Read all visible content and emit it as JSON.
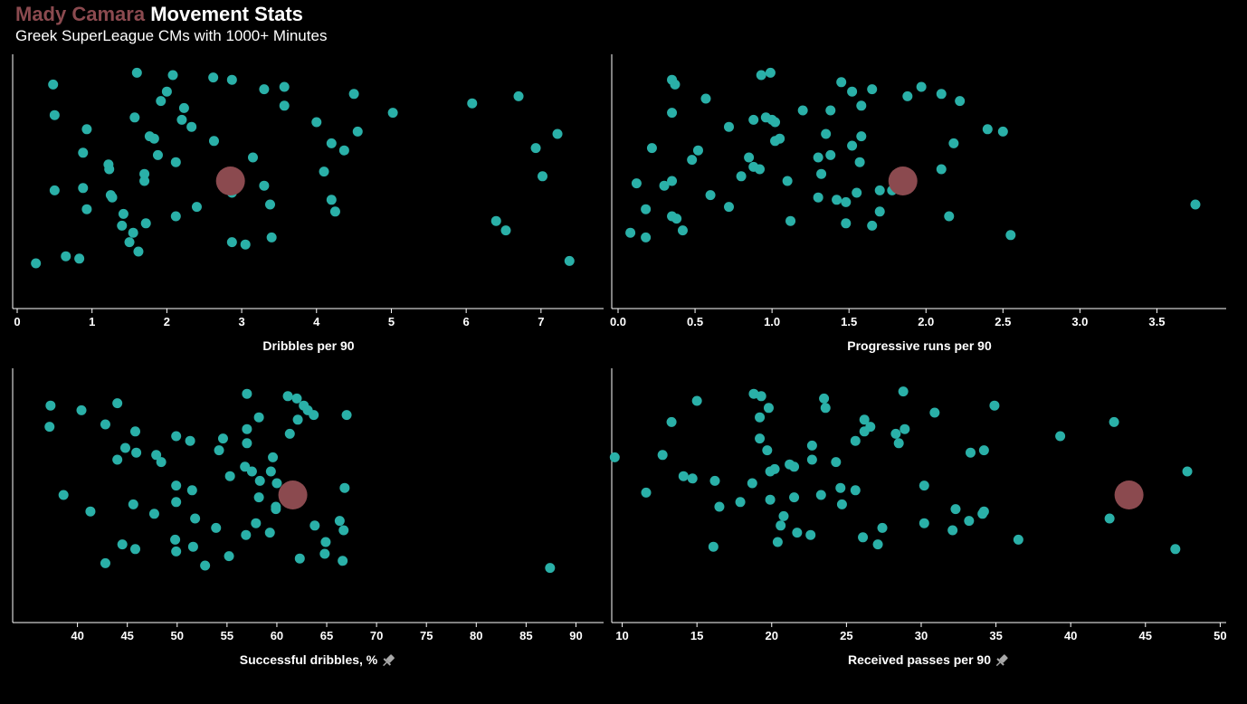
{
  "header": {
    "player": "Mady Camara",
    "title_rest": "Movement Stats",
    "subtitle": "Greek SuperLeague CMs with 1000+ Minutes"
  },
  "colors": {
    "highlight": "#8b4a4f",
    "others": "#2ab0a8",
    "background": "#000000",
    "axis": "#ffffff",
    "pin_icon": "#a8a8a8"
  },
  "chart_data": [
    {
      "type": "scatter",
      "xlabel": "Dribbles per 90",
      "xlim": [
        0,
        7.8
      ],
      "ticks": [
        0,
        1,
        2,
        3,
        4,
        5,
        6,
        7
      ],
      "pinned": false,
      "highlight": {
        "name": "Mady Camara",
        "x": 2.85,
        "y": 0.5
      },
      "points": [
        {
          "x": 0.48,
          "y": 0.91
        },
        {
          "x": 1.6,
          "y": 0.96
        },
        {
          "x": 2.08,
          "y": 0.95
        },
        {
          "x": 2.62,
          "y": 0.94
        },
        {
          "x": 2.87,
          "y": 0.93
        },
        {
          "x": 3.3,
          "y": 0.89
        },
        {
          "x": 3.57,
          "y": 0.9
        },
        {
          "x": 2,
          "y": 0.88
        },
        {
          "x": 1.92,
          "y": 0.84
        },
        {
          "x": 4.5,
          "y": 0.87
        },
        {
          "x": 3.57,
          "y": 0.82
        },
        {
          "x": 2.23,
          "y": 0.81
        },
        {
          "x": 0.5,
          "y": 0.78
        },
        {
          "x": 1.57,
          "y": 0.77
        },
        {
          "x": 5.02,
          "y": 0.79
        },
        {
          "x": 6.08,
          "y": 0.83
        },
        {
          "x": 6.7,
          "y": 0.86
        },
        {
          "x": 2.2,
          "y": 0.76
        },
        {
          "x": 2.33,
          "y": 0.73
        },
        {
          "x": 4,
          "y": 0.75
        },
        {
          "x": 0.93,
          "y": 0.72
        },
        {
          "x": 4.55,
          "y": 0.71
        },
        {
          "x": 1.77,
          "y": 0.69
        },
        {
          "x": 1.83,
          "y": 0.68
        },
        {
          "x": 2.63,
          "y": 0.67
        },
        {
          "x": 4.2,
          "y": 0.66
        },
        {
          "x": 4.37,
          "y": 0.63
        },
        {
          "x": 7.22,
          "y": 0.7
        },
        {
          "x": 6.93,
          "y": 0.64
        },
        {
          "x": 0.88,
          "y": 0.62
        },
        {
          "x": 1.88,
          "y": 0.61
        },
        {
          "x": 3.15,
          "y": 0.6
        },
        {
          "x": 2.12,
          "y": 0.58
        },
        {
          "x": 1.22,
          "y": 0.57
        },
        {
          "x": 1.23,
          "y": 0.55
        },
        {
          "x": 4.1,
          "y": 0.54
        },
        {
          "x": 1.7,
          "y": 0.53
        },
        {
          "x": 1.7,
          "y": 0.5
        },
        {
          "x": 7.02,
          "y": 0.52
        },
        {
          "x": 3.3,
          "y": 0.48
        },
        {
          "x": 0.88,
          "y": 0.47
        },
        {
          "x": 0.5,
          "y": 0.46
        },
        {
          "x": 2.87,
          "y": 0.45
        },
        {
          "x": 1.25,
          "y": 0.44
        },
        {
          "x": 1.27,
          "y": 0.43
        },
        {
          "x": 4.2,
          "y": 0.42
        },
        {
          "x": 3.38,
          "y": 0.4
        },
        {
          "x": 2.4,
          "y": 0.39
        },
        {
          "x": 0.93,
          "y": 0.38
        },
        {
          "x": 4.25,
          "y": 0.37
        },
        {
          "x": 1.42,
          "y": 0.36
        },
        {
          "x": 2.12,
          "y": 0.35
        },
        {
          "x": 1.72,
          "y": 0.32
        },
        {
          "x": 1.4,
          "y": 0.31
        },
        {
          "x": 6.4,
          "y": 0.33
        },
        {
          "x": 6.53,
          "y": 0.29
        },
        {
          "x": 1.55,
          "y": 0.28
        },
        {
          "x": 3.4,
          "y": 0.26
        },
        {
          "x": 1.5,
          "y": 0.24
        },
        {
          "x": 2.87,
          "y": 0.24
        },
        {
          "x": 3.05,
          "y": 0.23
        },
        {
          "x": 1.62,
          "y": 0.2
        },
        {
          "x": 0.65,
          "y": 0.18
        },
        {
          "x": 0.83,
          "y": 0.17
        },
        {
          "x": 0.25,
          "y": 0.15
        },
        {
          "x": 7.38,
          "y": 0.16
        }
      ]
    },
    {
      "type": "scatter",
      "xlabel": "Progressive runs per 90",
      "xlim": [
        0,
        3.95
      ],
      "ticks": [
        "0.0",
        "0.5",
        "1.0",
        "1.5",
        "2.0",
        "2.5",
        "3.0",
        "3.5"
      ],
      "pinned": false,
      "highlight": {
        "name": "Mady Camara",
        "x": 1.85,
        "y": 0.5
      },
      "points": [
        {
          "x": 0.35,
          "y": 0.93
        },
        {
          "x": 0.37,
          "y": 0.91
        },
        {
          "x": 0.93,
          "y": 0.95
        },
        {
          "x": 0.99,
          "y": 0.96
        },
        {
          "x": 1.45,
          "y": 0.92
        },
        {
          "x": 1.52,
          "y": 0.88
        },
        {
          "x": 1.65,
          "y": 0.89
        },
        {
          "x": 1.97,
          "y": 0.9
        },
        {
          "x": 1.88,
          "y": 0.86
        },
        {
          "x": 2.1,
          "y": 0.87
        },
        {
          "x": 2.22,
          "y": 0.84
        },
        {
          "x": 0.57,
          "y": 0.85
        },
        {
          "x": 1.58,
          "y": 0.82
        },
        {
          "x": 0.35,
          "y": 0.79
        },
        {
          "x": 1.2,
          "y": 0.8
        },
        {
          "x": 1.38,
          "y": 0.8
        },
        {
          "x": 0.96,
          "y": 0.77
        },
        {
          "x": 0.88,
          "y": 0.76
        },
        {
          "x": 1,
          "y": 0.76
        },
        {
          "x": 1.02,
          "y": 0.75
        },
        {
          "x": 0.72,
          "y": 0.73
        },
        {
          "x": 2.4,
          "y": 0.72
        },
        {
          "x": 2.5,
          "y": 0.71
        },
        {
          "x": 1.35,
          "y": 0.7
        },
        {
          "x": 1.58,
          "y": 0.69
        },
        {
          "x": 1.05,
          "y": 0.68
        },
        {
          "x": 1.02,
          "y": 0.67
        },
        {
          "x": 2.18,
          "y": 0.66
        },
        {
          "x": 1.52,
          "y": 0.65
        },
        {
          "x": 0.22,
          "y": 0.64
        },
        {
          "x": 0.52,
          "y": 0.63
        },
        {
          "x": 1.38,
          "y": 0.61
        },
        {
          "x": 1.3,
          "y": 0.6
        },
        {
          "x": 0.85,
          "y": 0.6
        },
        {
          "x": 0.48,
          "y": 0.59
        },
        {
          "x": 1.57,
          "y": 0.58
        },
        {
          "x": 0.88,
          "y": 0.56
        },
        {
          "x": 2.1,
          "y": 0.55
        },
        {
          "x": 0.92,
          "y": 0.55
        },
        {
          "x": 1.32,
          "y": 0.53
        },
        {
          "x": 0.8,
          "y": 0.52
        },
        {
          "x": 0.35,
          "y": 0.5
        },
        {
          "x": 1.1,
          "y": 0.5
        },
        {
          "x": 0.12,
          "y": 0.49
        },
        {
          "x": 0.3,
          "y": 0.48
        },
        {
          "x": 1.7,
          "y": 0.46
        },
        {
          "x": 1.55,
          "y": 0.45
        },
        {
          "x": 1.78,
          "y": 0.46
        },
        {
          "x": 0.6,
          "y": 0.44
        },
        {
          "x": 1.3,
          "y": 0.43
        },
        {
          "x": 1.42,
          "y": 0.42
        },
        {
          "x": 1.48,
          "y": 0.41
        },
        {
          "x": 3.75,
          "y": 0.4
        },
        {
          "x": 0.72,
          "y": 0.39
        },
        {
          "x": 0.18,
          "y": 0.38
        },
        {
          "x": 1.7,
          "y": 0.37
        },
        {
          "x": 0.35,
          "y": 0.35
        },
        {
          "x": 0.38,
          "y": 0.34
        },
        {
          "x": 2.15,
          "y": 0.35
        },
        {
          "x": 1.12,
          "y": 0.33
        },
        {
          "x": 1.48,
          "y": 0.32
        },
        {
          "x": 1.65,
          "y": 0.31
        },
        {
          "x": 0.42,
          "y": 0.29
        },
        {
          "x": 0.08,
          "y": 0.28
        },
        {
          "x": 0.18,
          "y": 0.26
        },
        {
          "x": 2.55,
          "y": 0.27
        }
      ]
    },
    {
      "type": "scatter",
      "xlabel": "Successful dribbles, %",
      "xlim": [
        33.5,
        92.5
      ],
      "ticks": [
        40,
        45,
        50,
        55,
        60,
        65,
        70,
        75,
        80,
        85,
        90
      ],
      "pinned": true,
      "highlight": {
        "name": "Mady Camara",
        "x": 61.6,
        "y": 0.5
      },
      "points": [
        {
          "x": 37.3,
          "y": 0.88
        },
        {
          "x": 37.2,
          "y": 0.79
        },
        {
          "x": 40.4,
          "y": 0.86
        },
        {
          "x": 42.8,
          "y": 0.8
        },
        {
          "x": 44,
          "y": 0.89
        },
        {
          "x": 57,
          "y": 0.93
        },
        {
          "x": 61.1,
          "y": 0.92
        },
        {
          "x": 62,
          "y": 0.91
        },
        {
          "x": 62.7,
          "y": 0.88
        },
        {
          "x": 63.1,
          "y": 0.86
        },
        {
          "x": 63.7,
          "y": 0.84
        },
        {
          "x": 67,
          "y": 0.84
        },
        {
          "x": 58.2,
          "y": 0.83
        },
        {
          "x": 62.1,
          "y": 0.82
        },
        {
          "x": 57,
          "y": 0.78
        },
        {
          "x": 61.3,
          "y": 0.76
        },
        {
          "x": 45.8,
          "y": 0.77
        },
        {
          "x": 49.9,
          "y": 0.75
        },
        {
          "x": 51.3,
          "y": 0.73
        },
        {
          "x": 54.6,
          "y": 0.74
        },
        {
          "x": 57,
          "y": 0.72
        },
        {
          "x": 44.8,
          "y": 0.7
        },
        {
          "x": 45.9,
          "y": 0.68
        },
        {
          "x": 54.2,
          "y": 0.69
        },
        {
          "x": 47.9,
          "y": 0.67
        },
        {
          "x": 44,
          "y": 0.65
        },
        {
          "x": 48.4,
          "y": 0.64
        },
        {
          "x": 59.6,
          "y": 0.66
        },
        {
          "x": 56.8,
          "y": 0.62
        },
        {
          "x": 57.5,
          "y": 0.6
        },
        {
          "x": 59.4,
          "y": 0.6
        },
        {
          "x": 55.3,
          "y": 0.58
        },
        {
          "x": 58.3,
          "y": 0.56
        },
        {
          "x": 60,
          "y": 0.55
        },
        {
          "x": 49.9,
          "y": 0.54
        },
        {
          "x": 51.5,
          "y": 0.52
        },
        {
          "x": 66.8,
          "y": 0.53
        },
        {
          "x": 38.6,
          "y": 0.5
        },
        {
          "x": 58.2,
          "y": 0.49
        },
        {
          "x": 49.9,
          "y": 0.47
        },
        {
          "x": 45.6,
          "y": 0.46
        },
        {
          "x": 59.9,
          "y": 0.45
        },
        {
          "x": 59.9,
          "y": 0.44
        },
        {
          "x": 41.3,
          "y": 0.43
        },
        {
          "x": 47.7,
          "y": 0.42
        },
        {
          "x": 51.8,
          "y": 0.4
        },
        {
          "x": 66.3,
          "y": 0.39
        },
        {
          "x": 57.9,
          "y": 0.38
        },
        {
          "x": 63.8,
          "y": 0.37
        },
        {
          "x": 53.9,
          "y": 0.36
        },
        {
          "x": 66.7,
          "y": 0.35
        },
        {
          "x": 59.3,
          "y": 0.34
        },
        {
          "x": 56.9,
          "y": 0.33
        },
        {
          "x": 49.8,
          "y": 0.31
        },
        {
          "x": 64.9,
          "y": 0.3
        },
        {
          "x": 44.5,
          "y": 0.29
        },
        {
          "x": 45.8,
          "y": 0.27
        },
        {
          "x": 51.6,
          "y": 0.28
        },
        {
          "x": 49.9,
          "y": 0.26
        },
        {
          "x": 64.8,
          "y": 0.25
        },
        {
          "x": 55.2,
          "y": 0.24
        },
        {
          "x": 62.3,
          "y": 0.23
        },
        {
          "x": 66.6,
          "y": 0.22
        },
        {
          "x": 42.8,
          "y": 0.21
        },
        {
          "x": 52.8,
          "y": 0.2
        },
        {
          "x": 87.4,
          "y": 0.19
        }
      ]
    },
    {
      "type": "scatter",
      "xlabel": "Received passes per 90",
      "xlim": [
        9.3,
        50.4
      ],
      "ticks": [
        10,
        15,
        20,
        25,
        30,
        35,
        40,
        45,
        50
      ],
      "pinned": true,
      "highlight": {
        "name": "Mady Camara",
        "x": 43.9,
        "y": 0.5
      },
      "points": [
        {
          "x": 18.8,
          "y": 0.93
        },
        {
          "x": 19.3,
          "y": 0.92
        },
        {
          "x": 28.8,
          "y": 0.94
        },
        {
          "x": 23.5,
          "y": 0.91
        },
        {
          "x": 15,
          "y": 0.9
        },
        {
          "x": 19.8,
          "y": 0.87
        },
        {
          "x": 23.6,
          "y": 0.87
        },
        {
          "x": 34.9,
          "y": 0.88
        },
        {
          "x": 30.9,
          "y": 0.85
        },
        {
          "x": 19.2,
          "y": 0.83
        },
        {
          "x": 26.2,
          "y": 0.82
        },
        {
          "x": 13.3,
          "y": 0.81
        },
        {
          "x": 42.9,
          "y": 0.81
        },
        {
          "x": 26.6,
          "y": 0.79
        },
        {
          "x": 26.2,
          "y": 0.77
        },
        {
          "x": 28.9,
          "y": 0.78
        },
        {
          "x": 28.3,
          "y": 0.76
        },
        {
          "x": 39.3,
          "y": 0.75
        },
        {
          "x": 19.2,
          "y": 0.74
        },
        {
          "x": 25.6,
          "y": 0.73
        },
        {
          "x": 28.5,
          "y": 0.72
        },
        {
          "x": 22.7,
          "y": 0.71
        },
        {
          "x": 19.7,
          "y": 0.69
        },
        {
          "x": 34.2,
          "y": 0.69
        },
        {
          "x": 33.3,
          "y": 0.68
        },
        {
          "x": 9.5,
          "y": 0.66
        },
        {
          "x": 12.7,
          "y": 0.67
        },
        {
          "x": 22.7,
          "y": 0.65
        },
        {
          "x": 24.3,
          "y": 0.64
        },
        {
          "x": 21.2,
          "y": 0.63
        },
        {
          "x": 21.5,
          "y": 0.62
        },
        {
          "x": 20.2,
          "y": 0.61
        },
        {
          "x": 19.9,
          "y": 0.6
        },
        {
          "x": 47.8,
          "y": 0.6
        },
        {
          "x": 14.1,
          "y": 0.58
        },
        {
          "x": 14.7,
          "y": 0.57
        },
        {
          "x": 16.2,
          "y": 0.56
        },
        {
          "x": 18.7,
          "y": 0.55
        },
        {
          "x": 24.6,
          "y": 0.53
        },
        {
          "x": 25.6,
          "y": 0.52
        },
        {
          "x": 30.2,
          "y": 0.54
        },
        {
          "x": 11.6,
          "y": 0.51
        },
        {
          "x": 21.5,
          "y": 0.49
        },
        {
          "x": 23.3,
          "y": 0.5
        },
        {
          "x": 19.9,
          "y": 0.48
        },
        {
          "x": 17.9,
          "y": 0.47
        },
        {
          "x": 24.7,
          "y": 0.46
        },
        {
          "x": 16.5,
          "y": 0.45
        },
        {
          "x": 32.3,
          "y": 0.44
        },
        {
          "x": 34.2,
          "y": 0.43
        },
        {
          "x": 34.1,
          "y": 0.42
        },
        {
          "x": 20.8,
          "y": 0.41
        },
        {
          "x": 42.6,
          "y": 0.4
        },
        {
          "x": 33.2,
          "y": 0.39
        },
        {
          "x": 30.2,
          "y": 0.38
        },
        {
          "x": 20.6,
          "y": 0.37
        },
        {
          "x": 27.4,
          "y": 0.36
        },
        {
          "x": 32.1,
          "y": 0.35
        },
        {
          "x": 21.7,
          "y": 0.34
        },
        {
          "x": 22.6,
          "y": 0.33
        },
        {
          "x": 26.1,
          "y": 0.32
        },
        {
          "x": 36.5,
          "y": 0.31
        },
        {
          "x": 20.4,
          "y": 0.3
        },
        {
          "x": 27.1,
          "y": 0.29
        },
        {
          "x": 16.1,
          "y": 0.28
        },
        {
          "x": 47,
          "y": 0.27
        }
      ]
    }
  ]
}
